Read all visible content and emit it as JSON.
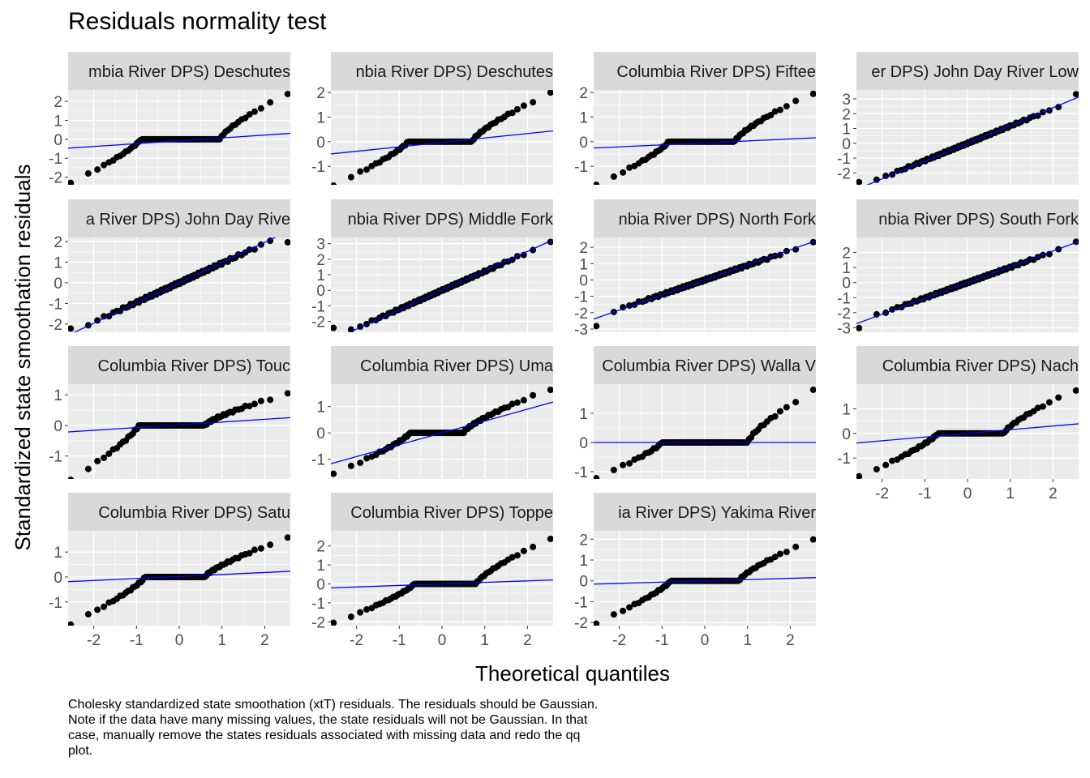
{
  "title": "Residuals normality test",
  "caption": "Cholesky standardized state smoothation (xtT) residuals. The residuals should be Gaussian. Note if the data have many missing values, the state residuals will not be Gaussian. In that case, manually remove the states residuals associated with missing data and redo the qq plot.",
  "colors": {
    "panel_bg": "#EBEBEB",
    "strip_bg": "#D9D9D9",
    "grid": "#FFFFFF",
    "point": "#000000",
    "ref_line": "#0000FF",
    "tick_text": "#4D4D4D"
  },
  "chart_data": {
    "type": "scatter",
    "xlabel": "Theoretical quantiles",
    "ylabel": "Standardized state smoothation residuals",
    "xlim": [
      -2.6,
      2.6
    ],
    "x_ticks": [
      -2,
      -1,
      0,
      1,
      2
    ],
    "grid": true,
    "panels": [
      {
        "strip": "mbia River DPS) Deschutes",
        "ylim": [
          -2.4,
          2.6
        ],
        "y_ticks": [
          -2,
          -1,
          0,
          1,
          2
        ],
        "line": [
          -0.08,
          0.15
        ],
        "shape": "flat",
        "low": -2.2,
        "high": 2.3,
        "flat": [
          -0.9,
          0.95
        ]
      },
      {
        "strip": "nbia River DPS) Deschutes",
        "ylim": [
          -1.75,
          2.1
        ],
        "y_ticks": [
          -1,
          0,
          1,
          2
        ],
        "line": [
          -0.03,
          0.18
        ],
        "shape": "flat",
        "low": -1.7,
        "high": 1.9,
        "flat": [
          -0.8,
          0.7
        ]
      },
      {
        "strip": "Columbia River DPS) Fiftee",
        "ylim": [
          -1.75,
          2.1
        ],
        "y_ticks": [
          -1,
          0,
          1,
          2
        ],
        "line": [
          -0.05,
          0.08
        ],
        "shape": "flat",
        "low": -1.7,
        "high": 1.9,
        "flat": [
          -0.85,
          0.7
        ]
      },
      {
        "strip": "er DPS) John Day River Low",
        "ylim": [
          -2.8,
          3.6
        ],
        "y_ticks": [
          -2,
          -1,
          0,
          1,
          2,
          3
        ],
        "line": [
          0.0,
          1.2
        ],
        "shape": "linear",
        "low": -2.6,
        "high": 3.3
      },
      {
        "strip": "a River DPS) John Day Rive",
        "ylim": [
          -2.4,
          2.2
        ],
        "y_ticks": [
          -2,
          -1,
          0,
          1,
          2
        ],
        "line": [
          0.0,
          0.98
        ],
        "shape": "linear",
        "low": -2.2,
        "high": 1.95
      },
      {
        "strip": "nbia River DPS) Middle Fork",
        "ylim": [
          -2.7,
          3.4
        ],
        "y_ticks": [
          -2,
          -1,
          0,
          1,
          2,
          3
        ],
        "line": [
          0.0,
          1.25
        ],
        "shape": "linear",
        "low": -2.4,
        "high": 3.1
      },
      {
        "strip": "nbia River DPS) North Fork",
        "ylim": [
          -3.2,
          2.6
        ],
        "y_ticks": [
          -3,
          -2,
          -1,
          0,
          1,
          2
        ],
        "line": [
          0.0,
          0.92
        ],
        "shape": "linear",
        "low": -2.8,
        "high": 2.3
      },
      {
        "strip": "nbia River DPS) South Fork",
        "ylim": [
          -3.3,
          3.0
        ],
        "y_ticks": [
          -3,
          -2,
          -1,
          0,
          1,
          2
        ],
        "line": [
          0.0,
          1.05
        ],
        "shape": "linear",
        "low": -3.0,
        "high": 2.7
      },
      {
        "strip": "Columbia River DPS) Touc",
        "ylim": [
          -1.75,
          1.35
        ],
        "y_ticks": [
          -1,
          0,
          1
        ],
        "line": [
          0.02,
          0.09
        ],
        "shape": "flat",
        "low": -1.7,
        "high": 1.0,
        "flat": [
          -0.95,
          0.6
        ]
      },
      {
        "strip": "Columbia River DPS) Uma",
        "ylim": [
          -1.75,
          1.85
        ],
        "y_ticks": [
          -1,
          0,
          1
        ],
        "line": [
          0.0,
          0.45
        ],
        "shape": "flat",
        "low": -1.5,
        "high": 1.6,
        "flat": [
          -0.75,
          0.5
        ]
      },
      {
        "strip": "Columbia River DPS) Walla V",
        "ylim": [
          -1.25,
          2.0
        ],
        "y_ticks": [
          -1,
          0,
          1
        ],
        "line": [
          0.0,
          0.0
        ],
        "shape": "flat",
        "low": -1.15,
        "high": 1.7,
        "flat": [
          -1.0,
          1.0
        ]
      },
      {
        "strip": "Columbia River DPS) Nach",
        "ylim": [
          -1.85,
          2.0
        ],
        "y_ticks": [
          -1,
          0,
          1
        ],
        "line": [
          0.0,
          0.15
        ],
        "shape": "flat",
        "low": -1.7,
        "high": 1.7,
        "flat": [
          -0.7,
          0.85
        ]
      },
      {
        "strip": "Columbia River DPS) Satu",
        "ylim": [
          -1.95,
          1.85
        ],
        "y_ticks": [
          -1,
          0,
          1
        ],
        "line": [
          0.02,
          0.08
        ],
        "shape": "flat",
        "low": -1.8,
        "high": 1.5,
        "flat": [
          -0.8,
          0.6
        ]
      },
      {
        "strip": "Columbia River DPS) Toppe",
        "ylim": [
          -2.2,
          2.8
        ],
        "y_ticks": [
          -2,
          -1,
          0,
          1,
          2
        ],
        "line": [
          0.0,
          0.08
        ],
        "shape": "flat",
        "low": -2.0,
        "high": 2.3,
        "flat": [
          -0.65,
          0.8
        ]
      },
      {
        "strip": "ia River DPS) Yakima River",
        "ylim": [
          -2.15,
          2.4
        ],
        "y_ticks": [
          -2,
          -1,
          0,
          1,
          2
        ],
        "line": [
          0.0,
          0.06
        ],
        "shape": "flat",
        "low": -1.95,
        "high": 1.9,
        "flat": [
          -0.8,
          0.8
        ]
      }
    ]
  }
}
